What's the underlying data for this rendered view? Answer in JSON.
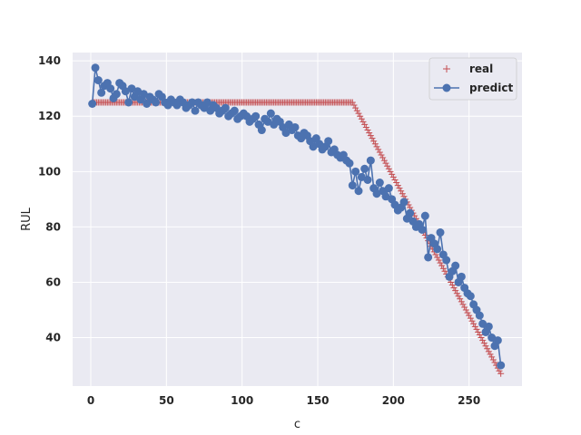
{
  "chart_data": {
    "type": "line",
    "xlabel": "c",
    "ylabel": "RUL",
    "xlim": [
      -12,
      285
    ],
    "ylim": [
      22.5,
      143
    ],
    "xticks": [
      0,
      50,
      100,
      150,
      200,
      250
    ],
    "yticks": [
      40,
      60,
      80,
      100,
      120,
      140
    ],
    "grid": true,
    "legend_position": "top-right",
    "colors": {
      "real": "#c44e52",
      "predict": "#4c72b0",
      "background": "#eaeaf2",
      "grid": "#ffffff"
    },
    "series": [
      {
        "name": "real",
        "marker": "+",
        "segments": [
          {
            "x_start": 1,
            "x_end": 173,
            "y_start": 125,
            "y_end": 125
          },
          {
            "x_start": 174,
            "x_end": 271,
            "y_start": 124,
            "y_end": 27
          }
        ]
      },
      {
        "name": "predict",
        "marker": "o",
        "x": [
          1,
          3,
          5,
          7,
          9,
          11,
          13,
          15,
          17,
          19,
          21,
          23,
          25,
          27,
          29,
          31,
          33,
          35,
          37,
          39,
          41,
          43,
          45,
          47,
          49,
          51,
          53,
          55,
          57,
          59,
          61,
          63,
          65,
          67,
          69,
          71,
          73,
          75,
          77,
          79,
          81,
          83,
          85,
          87,
          89,
          91,
          93,
          95,
          97,
          99,
          101,
          103,
          105,
          107,
          109,
          111,
          113,
          115,
          117,
          119,
          121,
          123,
          125,
          127,
          129,
          131,
          133,
          135,
          137,
          139,
          141,
          143,
          145,
          147,
          149,
          151,
          153,
          155,
          157,
          159,
          161,
          163,
          165,
          167,
          169,
          171,
          173,
          175,
          177,
          179,
          181,
          183,
          185,
          187,
          189,
          191,
          193,
          195,
          197,
          199,
          201,
          203,
          205,
          207,
          209,
          211,
          213,
          215,
          217,
          219,
          221,
          223,
          225,
          227,
          229,
          231,
          233,
          235,
          237,
          239,
          241,
          243,
          245,
          247,
          249,
          251,
          253,
          255,
          257,
          259,
          261,
          263,
          265,
          267,
          269,
          271
        ],
        "y": [
          124.5,
          137.5,
          133,
          128.5,
          131,
          132,
          130,
          126.5,
          128,
          132,
          131,
          129,
          125,
          130,
          127,
          129,
          126,
          128,
          124.5,
          127,
          126,
          125,
          128,
          127,
          125,
          124,
          126,
          125,
          124,
          126,
          125,
          123,
          124,
          125,
          122,
          125,
          124,
          123,
          125,
          122,
          124,
          123,
          121,
          122,
          123,
          120,
          121,
          122,
          119,
          120,
          121,
          120,
          118,
          119,
          120,
          117,
          115,
          119,
          118,
          121,
          117,
          119,
          118,
          116,
          114,
          117,
          115,
          116,
          113,
          112,
          114,
          113,
          111,
          109,
          112,
          110,
          108,
          109,
          111,
          107,
          108,
          106,
          105,
          106,
          104,
          103,
          95,
          100,
          93,
          98,
          101,
          97,
          104,
          94,
          92,
          96,
          93,
          91,
          94,
          90,
          88,
          86,
          87,
          89,
          83,
          85,
          82,
          80,
          81,
          79,
          84,
          69,
          76,
          74,
          72,
          78,
          70,
          68,
          62,
          64,
          66,
          60,
          62,
          58,
          56,
          55,
          52,
          50,
          48,
          45,
          42,
          44,
          40,
          37,
          39,
          30
        ]
      }
    ]
  },
  "legend": {
    "items": [
      {
        "label": "real"
      },
      {
        "label": "predict"
      }
    ]
  }
}
